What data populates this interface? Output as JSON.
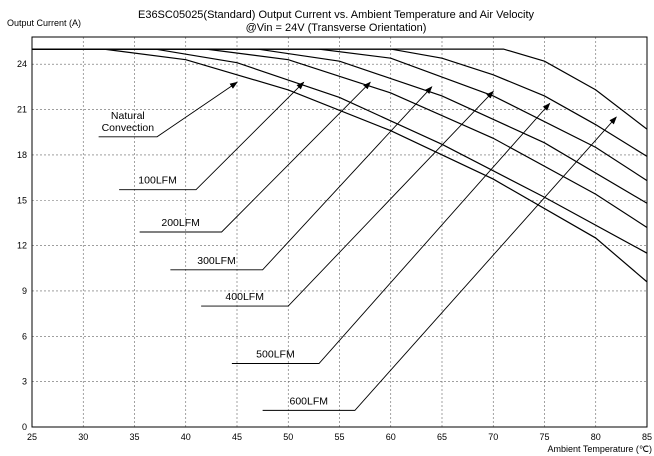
{
  "chart_data": {
    "type": "line",
    "title": "E36SC05025(Standard)  Output Current vs. Ambient Temperature and Air Velocity",
    "subtitle": "@Vin = 24V (Transverse Orientation)",
    "ylabel": "Output Current (A)",
    "xlabel": "Ambient Temperature (℃)",
    "xlim": [
      25,
      85
    ],
    "ylim": [
      0,
      25.8
    ],
    "xticks": [
      25,
      30,
      35,
      40,
      45,
      50,
      55,
      60,
      65,
      70,
      75,
      80,
      85
    ],
    "yticks": [
      0,
      3,
      6,
      9,
      12,
      15,
      18,
      21,
      24
    ],
    "grid": true,
    "series": [
      {
        "name": "Natural Convection",
        "x": [
          25,
          32,
          40,
          50,
          60,
          70,
          80,
          85
        ],
        "y": [
          25,
          25,
          24.3,
          22.3,
          19.6,
          16.4,
          12.5,
          9.6
        ]
      },
      {
        "name": "100LFM",
        "x": [
          25,
          37,
          45,
          55,
          65,
          75,
          85
        ],
        "y": [
          25,
          25,
          24.1,
          21.8,
          18.7,
          15.2,
          11.5
        ]
      },
      {
        "name": "200LFM",
        "x": [
          25,
          42,
          50,
          60,
          70,
          80,
          85
        ],
        "y": [
          25,
          25,
          24.3,
          22.1,
          19.1,
          15.4,
          13.2
        ]
      },
      {
        "name": "300LFM",
        "x": [
          25,
          47,
          55,
          65,
          75,
          85
        ],
        "y": [
          25,
          25,
          24.2,
          21.9,
          18.8,
          14.8
        ]
      },
      {
        "name": "400LFM",
        "x": [
          25,
          53,
          60,
          70,
          80,
          85
        ],
        "y": [
          25,
          25,
          24.4,
          21.9,
          18.5,
          16.3
        ]
      },
      {
        "name": "500LFM",
        "x": [
          25,
          60,
          65,
          70,
          75,
          80,
          85
        ],
        "y": [
          25,
          25,
          24.4,
          23.3,
          21.9,
          20.0,
          17.9
        ]
      },
      {
        "name": "600LFM",
        "x": [
          25,
          71,
          75,
          80,
          85
        ],
        "y": [
          25,
          25,
          24.2,
          22.3,
          19.7
        ]
      }
    ],
    "annotations": [
      {
        "label": [
          "Natural",
          "Convection"
        ],
        "line": [
          [
            31.5,
            19.2
          ],
          [
            37.2,
            19.2
          ],
          [
            45,
            22.8
          ]
        ]
      },
      {
        "label": [
          "100LFM"
        ],
        "line": [
          [
            33.5,
            15.7
          ],
          [
            41,
            15.7
          ],
          [
            51.5,
            22.8
          ]
        ]
      },
      {
        "label": [
          "200LFM"
        ],
        "line": [
          [
            35.5,
            12.9
          ],
          [
            43.5,
            12.9
          ],
          [
            58,
            22.8
          ]
        ]
      },
      {
        "label": [
          "300LFM"
        ],
        "line": [
          [
            38.5,
            10.4
          ],
          [
            47.5,
            10.4
          ],
          [
            64,
            22.5
          ]
        ]
      },
      {
        "label": [
          "400LFM"
        ],
        "line": [
          [
            41.5,
            8.0
          ],
          [
            50,
            8.0
          ],
          [
            70,
            22.2
          ]
        ]
      },
      {
        "label": [
          "500LFM"
        ],
        "line": [
          [
            44.5,
            4.2
          ],
          [
            53,
            4.2
          ],
          [
            75.5,
            21.4
          ]
        ]
      },
      {
        "label": [
          "600LFM"
        ],
        "line": [
          [
            47.5,
            1.1
          ],
          [
            56.5,
            1.1
          ],
          [
            82,
            20.5
          ]
        ]
      }
    ]
  }
}
